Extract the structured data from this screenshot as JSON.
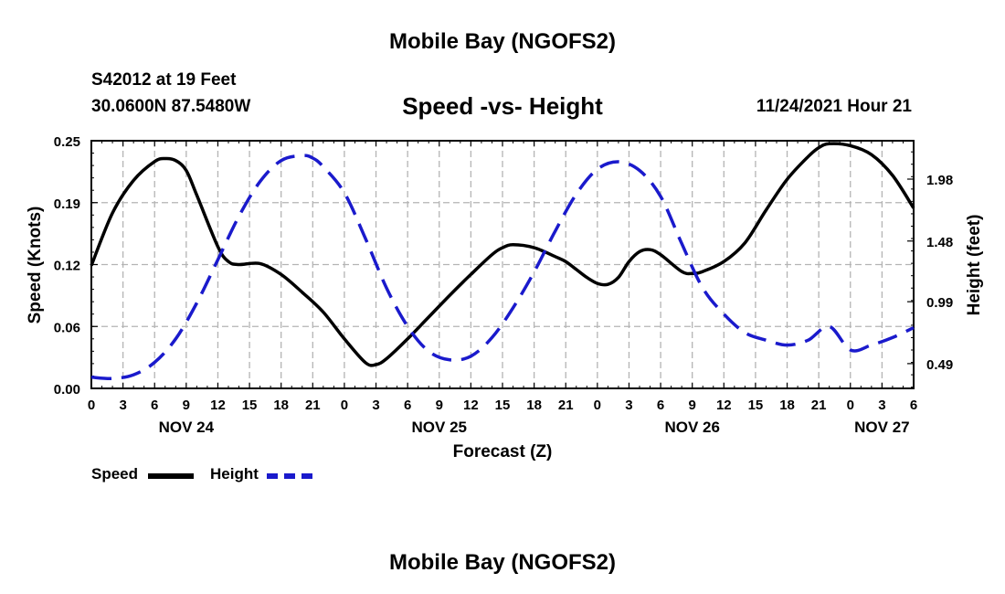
{
  "header": {
    "title": "Mobile Bay (NGOFS2)",
    "station": "S42012 at 19 Feet",
    "coords": "30.0600N  87.5480W",
    "subtitle": "Speed -vs- Height",
    "datetime": "11/24/2021 Hour 21"
  },
  "footer": {
    "title": "Mobile Bay (NGOFS2)"
  },
  "legend": {
    "speed_label": "Speed",
    "height_label": "Height"
  },
  "chart_data": {
    "type": "line",
    "xlabel": "Forecast (Z)",
    "ylabel_left": "Speed (Knots)",
    "ylabel_right": "Height (feet)",
    "x_unit": "hours from 11/24/2021 00Z",
    "xlim": [
      0,
      78
    ],
    "ylim_left": [
      0,
      0.25
    ],
    "ylim_right": [
      0.29,
      2.29
    ],
    "left_ticks": [
      "0.00",
      "0.06",
      "0.12",
      "0.19",
      "0.25"
    ],
    "right_ticks": [
      "0.49",
      "0.99",
      "1.48",
      "1.98"
    ],
    "x_tick_labels": [
      "0",
      "3",
      "6",
      "9",
      "12",
      "15",
      "18",
      "21",
      "0",
      "3",
      "6",
      "9",
      "12",
      "15",
      "18",
      "21",
      "0",
      "3",
      "6",
      "9",
      "12",
      "15",
      "18",
      "21",
      "0",
      "3",
      "6"
    ],
    "date_labels": [
      {
        "x": 9,
        "label": "NOV 24"
      },
      {
        "x": 33,
        "label": "NOV 25"
      },
      {
        "x": 57,
        "label": "NOV 26"
      },
      {
        "x": 75,
        "label": "NOV 27"
      }
    ],
    "grid": true,
    "series": [
      {
        "name": "Speed",
        "axis": "left",
        "color": "#000000",
        "style": "solid",
        "x": [
          0,
          2,
          4,
          6,
          7,
          8,
          9,
          10,
          12,
          13,
          14,
          16,
          18,
          20,
          22,
          24,
          26,
          27,
          28,
          30,
          32,
          34,
          36,
          38,
          39,
          40,
          42,
          44,
          45,
          46,
          47,
          48,
          49,
          50,
          51,
          52,
          53,
          54,
          56,
          57,
          58,
          60,
          62,
          64,
          66,
          68,
          69,
          70,
          72,
          74,
          76,
          78
        ],
        "y": [
          0.124,
          0.177,
          0.21,
          0.229,
          0.232,
          0.23,
          0.22,
          0.195,
          0.143,
          0.128,
          0.125,
          0.126,
          0.115,
          0.097,
          0.077,
          0.05,
          0.026,
          0.024,
          0.03,
          0.05,
          0.072,
          0.094,
          0.115,
          0.135,
          0.142,
          0.145,
          0.142,
          0.133,
          0.128,
          0.12,
          0.112,
          0.106,
          0.105,
          0.112,
          0.128,
          0.138,
          0.14,
          0.135,
          0.118,
          0.116,
          0.118,
          0.128,
          0.147,
          0.18,
          0.211,
          0.234,
          0.243,
          0.247,
          0.245,
          0.236,
          0.215,
          0.182
        ]
      },
      {
        "name": "Height",
        "axis": "right",
        "color": "#1a1acc",
        "style": "dashed",
        "x": [
          0,
          2,
          4,
          6,
          8,
          10,
          12,
          14,
          16,
          18,
          20,
          21,
          22,
          24,
          26,
          28,
          30,
          32,
          34,
          36,
          38,
          40,
          42,
          44,
          46,
          48,
          50,
          52,
          54,
          56,
          58,
          60,
          62,
          64,
          66,
          68,
          70,
          72,
          74,
          76,
          78
        ],
        "y": [
          0.38,
          0.37,
          0.4,
          0.5,
          0.69,
          0.98,
          1.33,
          1.68,
          1.96,
          2.13,
          2.17,
          2.15,
          2.08,
          1.87,
          1.5,
          1.1,
          0.79,
          0.59,
          0.52,
          0.55,
          0.7,
          0.94,
          1.23,
          1.56,
          1.86,
          2.06,
          2.12,
          2.05,
          1.84,
          1.46,
          1.1,
          0.89,
          0.74,
          0.68,
          0.64,
          0.68,
          0.79,
          0.6,
          0.64,
          0.7,
          0.78
        ]
      }
    ]
  }
}
